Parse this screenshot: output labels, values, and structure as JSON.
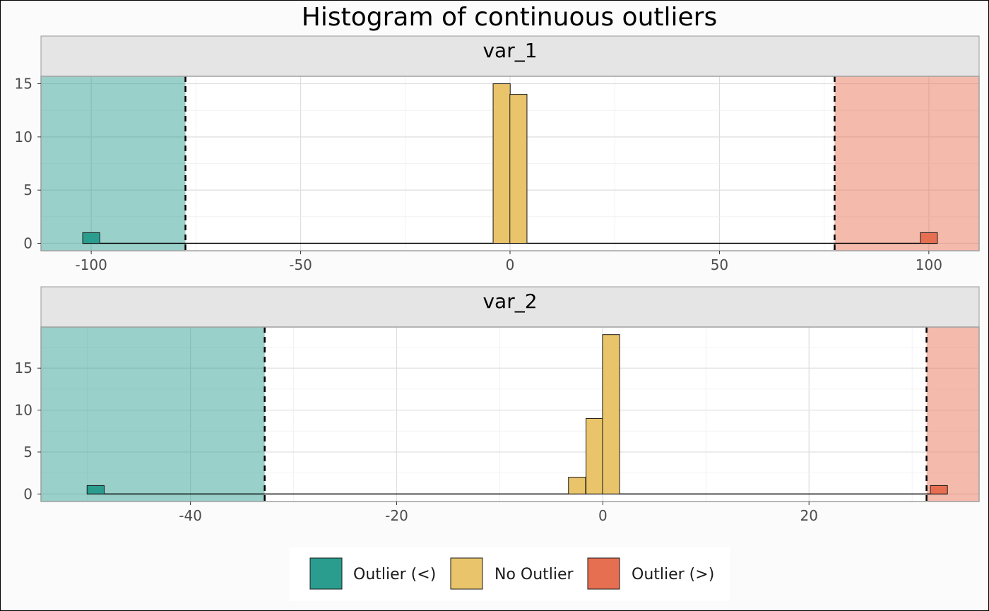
{
  "chart_data": {
    "type": "bar",
    "title": "Histogram of continuous outliers",
    "legend": {
      "placement": "bottom",
      "items": [
        {
          "label": "Outlier (<)",
          "color": "#2a9d8f"
        },
        {
          "label": "No Outlier",
          "color": "#e9c46a"
        },
        {
          "label": "Outlier (>)",
          "color": "#e76f51"
        }
      ]
    },
    "panels": [
      {
        "strip": "var_1",
        "xlim": [
          -112,
          112
        ],
        "ylim": [
          -0.7,
          15.7
        ],
        "x_ticks": [
          -100,
          -50,
          0,
          50,
          100
        ],
        "y_ticks": [
          0,
          5,
          10,
          15
        ],
        "lower_threshold": -77.5,
        "upper_threshold": 77.5,
        "bin_width": 4.08,
        "bins": [
          {
            "x": -100,
            "count": 1,
            "class": "Outlier (<)"
          },
          {
            "x": -2,
            "count": 15,
            "class": "No Outlier"
          },
          {
            "x": 2,
            "count": 14,
            "class": "No Outlier"
          },
          {
            "x": 100,
            "count": 1,
            "class": "Outlier (>)"
          }
        ]
      },
      {
        "strip": "var_2",
        "xlim": [
          -54.5,
          36.5
        ],
        "ylim": [
          -0.9,
          19.9
        ],
        "x_ticks": [
          -40,
          -20,
          0,
          20
        ],
        "y_ticks": [
          0,
          5,
          10,
          15
        ],
        "lower_threshold": -32.8,
        "upper_threshold": 31.4,
        "bin_width": 1.66,
        "bins": [
          {
            "x": -49.2,
            "count": 1,
            "class": "Outlier (<)"
          },
          {
            "x": -2.5,
            "count": 2,
            "class": "No Outlier"
          },
          {
            "x": -0.8,
            "count": 9,
            "class": "No Outlier"
          },
          {
            "x": 0.8,
            "count": 19,
            "class": "No Outlier"
          },
          {
            "x": 32.6,
            "count": 1,
            "class": "Outlier (>)"
          }
        ]
      }
    ]
  }
}
